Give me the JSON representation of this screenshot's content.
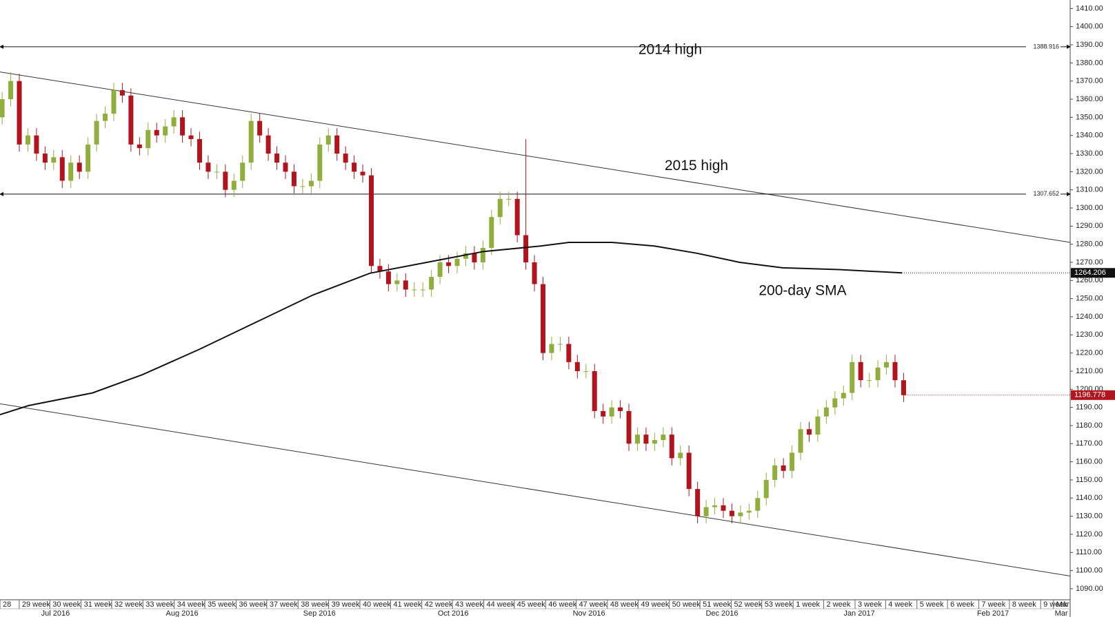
{
  "chart_data": {
    "type": "candlestick",
    "up_color": "#8fae3c",
    "down_color": "#b1141c",
    "xlim": [
      -0.25,
      124.4
    ],
    "ylim": [
      1083.9,
      1414.7
    ],
    "open": [
      1350,
      1360,
      1370,
      1335,
      1340,
      1330,
      1325,
      1328,
      1315,
      1325,
      1320,
      1335,
      1348,
      1352,
      1365,
      1362,
      1335,
      1333,
      1343,
      1340,
      1345,
      1350,
      1340,
      1338,
      1325,
      1320,
      1320,
      1310,
      1315,
      1325,
      1348,
      1340,
      1330,
      1325,
      1320,
      1312,
      1312,
      1315,
      1335,
      1340,
      1330,
      1325,
      1320,
      1318,
      1268,
      1265,
      1258,
      1260,
      1255,
      1255,
      1255,
      1262,
      1270,
      1268,
      1272,
      1275,
      1270,
      1278,
      1295,
      1305,
      1305,
      1285,
      1270,
      1258,
      1220,
      1225,
      1225,
      1215,
      1210,
      1210,
      1188,
      1185,
      1190,
      1188,
      1170,
      1175,
      1170,
      1172,
      1175,
      1162,
      1165,
      1145,
      1130,
      1135,
      1136,
      1133,
      1130,
      1132,
      1133,
      1140,
      1150,
      1158,
      1155,
      1165,
      1178,
      1175,
      1185,
      1190,
      1195,
      1198,
      1215,
      1205,
      1205,
      1212,
      1215,
      1205
    ],
    "high": [
      1364,
      1375,
      1374,
      1344,
      1344,
      1334,
      1332,
      1332,
      1329,
      1329,
      1339,
      1352,
      1356,
      1369,
      1369,
      1366,
      1339,
      1347,
      1347,
      1349,
      1354,
      1354,
      1344,
      1342,
      1329,
      1324,
      1324,
      1319,
      1329,
      1352,
      1352,
      1344,
      1334,
      1329,
      1324,
      1316,
      1319,
      1339,
      1344,
      1344,
      1334,
      1329,
      1324,
      1322,
      1272,
      1269,
      1264,
      1264,
      1259,
      1259,
      1266,
      1274,
      1274,
      1276,
      1279,
      1279,
      1282,
      1299,
      1309,
      1309,
      1309,
      1338,
      1274,
      1262,
      1229,
      1229,
      1229,
      1219,
      1214,
      1214,
      1192,
      1194,
      1194,
      1192,
      1179,
      1179,
      1176,
      1179,
      1179,
      1169,
      1169,
      1149,
      1139,
      1140,
      1140,
      1137,
      1136,
      1137,
      1144,
      1154,
      1162,
      1162,
      1169,
      1182,
      1182,
      1189,
      1194,
      1199,
      1202,
      1219,
      1219,
      1209,
      1216,
      1219,
      1219,
      1209
    ],
    "low": [
      1346,
      1356,
      1331,
      1331,
      1326,
      1321,
      1321,
      1311,
      1311,
      1316,
      1316,
      1331,
      1344,
      1348,
      1358,
      1331,
      1329,
      1329,
      1336,
      1336,
      1341,
      1336,
      1334,
      1321,
      1316,
      1316,
      1306,
      1306,
      1311,
      1321,
      1336,
      1326,
      1321,
      1316,
      1308,
      1308,
      1308,
      1311,
      1331,
      1326,
      1321,
      1316,
      1314,
      1264,
      1261,
      1254,
      1254,
      1251,
      1251,
      1251,
      1251,
      1258,
      1264,
      1264,
      1268,
      1266,
      1266,
      1274,
      1291,
      1301,
      1281,
      1266,
      1254,
      1216,
      1216,
      1221,
      1211,
      1206,
      1206,
      1184,
      1181,
      1181,
      1184,
      1166,
      1166,
      1166,
      1166,
      1168,
      1158,
      1158,
      1141,
      1126,
      1126,
      1131,
      1129,
      1126,
      1126,
      1128,
      1129,
      1136,
      1146,
      1151,
      1151,
      1161,
      1171,
      1171,
      1181,
      1186,
      1191,
      1194,
      1201,
      1201,
      1201,
      1208,
      1201,
      1193
    ],
    "close": [
      1360,
      1370,
      1335,
      1340,
      1330,
      1325,
      1328,
      1315,
      1325,
      1320,
      1335,
      1348,
      1352,
      1365,
      1362,
      1335,
      1333,
      1343,
      1340,
      1345,
      1350,
      1340,
      1338,
      1325,
      1320,
      1320,
      1310,
      1315,
      1325,
      1348,
      1340,
      1330,
      1325,
      1320,
      1312,
      1312,
      1315,
      1335,
      1340,
      1330,
      1325,
      1320,
      1318,
      1268,
      1265,
      1258,
      1260,
      1255,
      1255,
      1255,
      1262,
      1270,
      1268,
      1272,
      1275,
      1270,
      1278,
      1295,
      1305,
      1305,
      1285,
      1270,
      1258,
      1220,
      1225,
      1225,
      1215,
      1210,
      1210,
      1188,
      1185,
      1190,
      1188,
      1170,
      1175,
      1170,
      1172,
      1175,
      1162,
      1165,
      1145,
      1130,
      1135,
      1136,
      1133,
      1130,
      1132,
      1133,
      1140,
      1150,
      1158,
      1155,
      1165,
      1178,
      1175,
      1185,
      1190,
      1195,
      1198,
      1215,
      1205,
      1205,
      1212,
      1215,
      1205,
      1196.778
    ],
    "sma": {
      "x": [
        -0.25,
        3.07,
        10.52,
        16.32,
        22.95,
        29.58,
        36.2,
        42.83,
        49.46,
        56.09,
        62.72,
        66.03,
        71,
        75.97,
        80.94,
        85.91,
        90.89,
        97.51,
        104.8
      ],
      "values": [
        1186,
        1191,
        1198,
        1208,
        1222,
        1237,
        1252,
        1264,
        1270,
        1276,
        1279,
        1281,
        1281,
        1279,
        1275,
        1270,
        1267,
        1266,
        1264.206
      ],
      "color": "#111111"
    },
    "trendlines": [
      {
        "x": [
          -0.25,
          124.4
        ],
        "values": [
          1375,
          1281
        ]
      },
      {
        "x": [
          -0.25,
          124.4
        ],
        "values": [
          1192,
          1097
        ]
      }
    ],
    "levels": [
      1388.916,
      1307.652
    ],
    "last_price": 1196.778,
    "sma_last": 1264.206,
    "annotations": [
      {
        "text": "2014 high",
        "value": 1387
      },
      {
        "text": "2015 high",
        "value": 1323
      },
      {
        "text": "200-day SMA",
        "value": 1254
      }
    ],
    "yticks": [
      {
        "value": 1090,
        "label": "1090.00"
      },
      {
        "value": 1100,
        "label": "1100.00"
      },
      {
        "value": 1110,
        "label": "1110.00"
      },
      {
        "value": 1120,
        "label": "1120.00"
      },
      {
        "value": 1130,
        "label": "1130.00"
      },
      {
        "value": 1140,
        "label": "1140.00"
      },
      {
        "value": 1150,
        "label": "1150.00"
      },
      {
        "value": 1160,
        "label": "1160.00"
      },
      {
        "value": 1170,
        "label": "1170.00"
      },
      {
        "value": 1180,
        "label": "1180.00"
      },
      {
        "value": 1190,
        "label": "1190.00"
      },
      {
        "value": 1200,
        "label": "1200.00"
      },
      {
        "value": 1210,
        "label": "1210.00"
      },
      {
        "value": 1220,
        "label": "1220.00"
      },
      {
        "value": 1230,
        "label": "1230.00"
      },
      {
        "value": 1240,
        "label": "1240.00"
      },
      {
        "value": 1250,
        "label": "1250.00"
      },
      {
        "value": 1260,
        "label": "1260.00"
      },
      {
        "value": 1270,
        "label": "1270.00"
      },
      {
        "value": 1280,
        "label": "1280.00"
      },
      {
        "value": 1290,
        "label": "1290.00"
      },
      {
        "value": 1300,
        "label": "1300.00"
      },
      {
        "value": 1310,
        "label": "1310.00"
      },
      {
        "value": 1320,
        "label": "1320.00"
      },
      {
        "value": 1330,
        "label": "1330.00"
      },
      {
        "value": 1340,
        "label": "1340.00"
      },
      {
        "value": 1350,
        "label": "1350.00"
      },
      {
        "value": 1360,
        "label": "1360.00"
      },
      {
        "value": 1370,
        "label": "1370.00"
      },
      {
        "value": 1380,
        "label": "1380.00"
      },
      {
        "value": 1390,
        "label": "1390.00"
      },
      {
        "value": 1400,
        "label": "1400.00"
      },
      {
        "value": 1410,
        "label": "1410.00"
      }
    ],
    "xticks": [
      {
        "value": -0.25,
        "label": "28"
      },
      {
        "value": 1.99,
        "label": "29 week"
      },
      {
        "value": 5.55,
        "label": "30 week"
      },
      {
        "value": 9.2,
        "label": "31 week"
      },
      {
        "value": 12.76,
        "label": "32 week"
      },
      {
        "value": 16.4,
        "label": "33 week"
      },
      {
        "value": 20.05,
        "label": "34 week"
      },
      {
        "value": 23.61,
        "label": "35 week"
      },
      {
        "value": 27.26,
        "label": "36 week"
      },
      {
        "value": 30.82,
        "label": "37 week"
      },
      {
        "value": 34.47,
        "label": "38 week"
      },
      {
        "value": 38.03,
        "label": "39 week"
      },
      {
        "value": 41.67,
        "label": "40 week"
      },
      {
        "value": 45.24,
        "label": "41 week"
      },
      {
        "value": 48.88,
        "label": "42 week"
      },
      {
        "value": 52.44,
        "label": "43 week"
      },
      {
        "value": 56.09,
        "label": "44 week"
      },
      {
        "value": 59.65,
        "label": "45 week"
      },
      {
        "value": 63.3,
        "label": "46 week"
      },
      {
        "value": 66.86,
        "label": "47 week"
      },
      {
        "value": 70.5,
        "label": "48 week"
      },
      {
        "value": 74.07,
        "label": "49 week"
      },
      {
        "value": 77.71,
        "label": "50 week"
      },
      {
        "value": 81.28,
        "label": "51 week"
      },
      {
        "value": 84.92,
        "label": "52 week"
      },
      {
        "value": 88.48,
        "label": "53 week"
      },
      {
        "value": 92.13,
        "label": "1 week"
      },
      {
        "value": 95.69,
        "label": "2 week"
      },
      {
        "value": 99.34,
        "label": "3 week"
      },
      {
        "value": 102.9,
        "label": "4 week"
      },
      {
        "value": 106.55,
        "label": "5 week"
      },
      {
        "value": 110.11,
        "label": "6 week"
      },
      {
        "value": 113.75,
        "label": "7 week"
      },
      {
        "value": 117.32,
        "label": "8 week"
      },
      {
        "value": 120.96,
        "label": "9 week"
      },
      {
        "value": 122.45,
        "label": "Mar"
      }
    ],
    "month_ticks": [
      {
        "value": 6.21,
        "label": "Jul 2016"
      },
      {
        "value": 20.96,
        "label": "Aug 2016"
      },
      {
        "value": 36.95,
        "label": "Sep 2016"
      },
      {
        "value": 52.53,
        "label": "Oct 2016"
      },
      {
        "value": 68.35,
        "label": "Nov 2016"
      },
      {
        "value": 83.84,
        "label": "Dec 2016"
      },
      {
        "value": 99.83,
        "label": "Jan 2017"
      },
      {
        "value": 115.41,
        "label": "Feb 2017"
      },
      {
        "value": 123.36,
        "label": "Mar"
      }
    ]
  }
}
